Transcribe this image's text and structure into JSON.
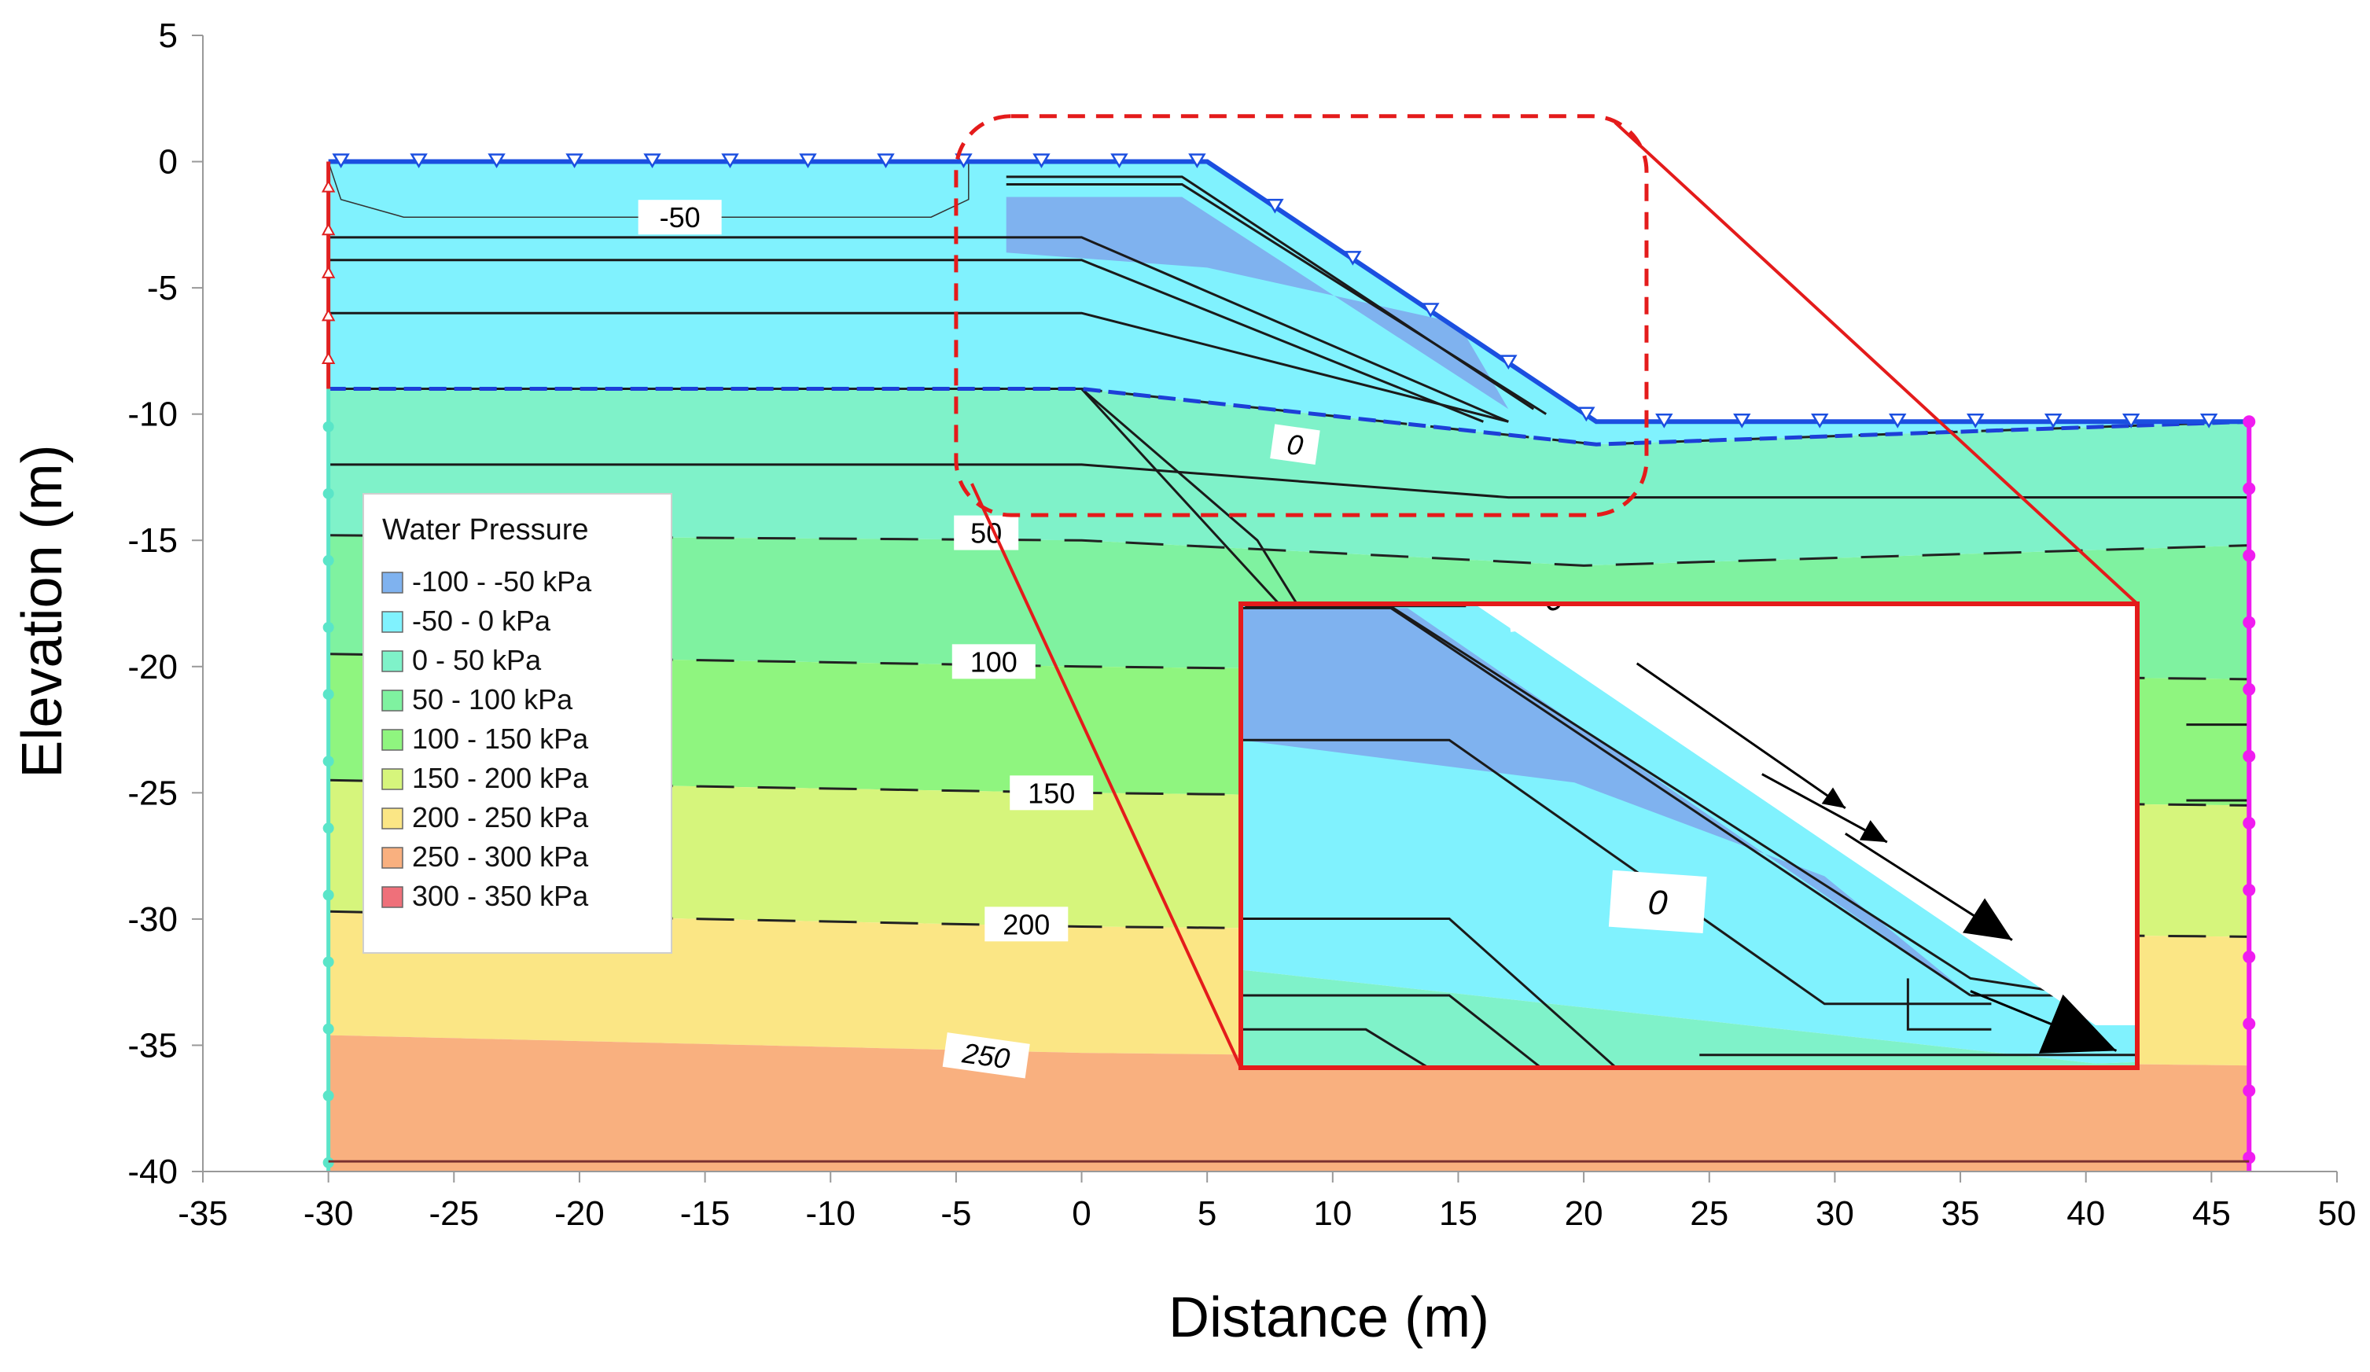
{
  "chart_data": {
    "type": "contour",
    "xlabel": "Distance (m)",
    "ylabel": "Elevation (m)",
    "xlim": [
      -35,
      50
    ],
    "ylim": [
      -40,
      5
    ],
    "xticks": [
      -35,
      -30,
      -25,
      -20,
      -15,
      -10,
      -5,
      0,
      5,
      10,
      15,
      20,
      25,
      30,
      35,
      40,
      45,
      50
    ],
    "yticks": [
      5,
      0,
      -5,
      -10,
      -15,
      -20,
      -25,
      -30,
      -35,
      -40
    ],
    "grid": false,
    "legend": {
      "title": "Water Pressure",
      "placement": "left-middle",
      "entries": [
        {
          "label": "-100 - -50 kPa",
          "color": "#7fb2ef"
        },
        {
          "label": "-50 - 0 kPa",
          "color": "#80f2fe"
        },
        {
          "label": "0 - 50 kPa",
          "color": "#7ff2c9"
        },
        {
          "label": "50 - 100 kPa",
          "color": "#7ff2a0"
        },
        {
          "label": "100 - 150 kPa",
          "color": "#8ff57f"
        },
        {
          "label": "150 - 200 kPa",
          "color": "#d6f57c"
        },
        {
          "label": "200 - 250 kPa",
          "color": "#fbe685"
        },
        {
          "label": "250 - 300 kPa",
          "color": "#f9b07f"
        },
        {
          "label": "300 - 350 kPa",
          "color": "#ef707a"
        }
      ]
    },
    "geometry": {
      "crest_elevation": 0,
      "toe_elevation": -10.3,
      "crest_edge_x": 5,
      "toe_x": 20.5,
      "left_x": -30,
      "right_x": 46.5,
      "bottom_elevation": -40
    },
    "zones": [
      {
        "range": "-50 - 0 kPa",
        "top": [
          [
            -30,
            0
          ],
          [
            5,
            0
          ],
          [
            20.5,
            -10.3
          ],
          [
            46.5,
            -10.3
          ]
        ],
        "bottom": [
          [
            -30,
            -9
          ],
          [
            0,
            -9
          ],
          [
            20.5,
            -11.2
          ],
          [
            46.5,
            -10.3
          ]
        ]
      },
      {
        "range": "0 - 50 kPa",
        "top": [
          [
            -30,
            -9
          ],
          [
            0,
            -9
          ],
          [
            20.5,
            -11.2
          ],
          [
            46.5,
            -10.3
          ]
        ],
        "bottom": [
          [
            -30,
            -14.8
          ],
          [
            0,
            -15
          ],
          [
            20,
            -16
          ],
          [
            46.5,
            -15.2
          ]
        ]
      },
      {
        "range": "50 - 100 kPa",
        "top": [
          [
            -30,
            -14.8
          ],
          [
            0,
            -15
          ],
          [
            20,
            -16
          ],
          [
            46.5,
            -15.2
          ]
        ],
        "bottom": [
          [
            -30,
            -19.5
          ],
          [
            0,
            -20
          ],
          [
            46.5,
            -20.5
          ]
        ]
      },
      {
        "range": "100 - 150 kPa",
        "top": [
          [
            -30,
            -19.5
          ],
          [
            0,
            -20
          ],
          [
            46.5,
            -20.5
          ]
        ],
        "bottom": [
          [
            -30,
            -24.5
          ],
          [
            0,
            -25
          ],
          [
            46.5,
            -25.5
          ]
        ]
      },
      {
        "range": "150 - 200 kPa",
        "top": [
          [
            -30,
            -24.5
          ],
          [
            0,
            -25
          ],
          [
            46.5,
            -25.5
          ]
        ],
        "bottom": [
          [
            -30,
            -29.7
          ],
          [
            0,
            -30.3
          ],
          [
            46.5,
            -30.7
          ]
        ]
      },
      {
        "range": "200 - 250 kPa",
        "top": [
          [
            -30,
            -29.7
          ],
          [
            0,
            -30.3
          ],
          [
            46.5,
            -30.7
          ]
        ],
        "bottom": [
          [
            -30,
            -34.6
          ],
          [
            0,
            -35.3
          ],
          [
            46.5,
            -35.8
          ]
        ]
      },
      {
        "range": "250 - 300 kPa",
        "top": [
          [
            -30,
            -34.6
          ],
          [
            0,
            -35.3
          ],
          [
            46.5,
            -35.8
          ]
        ],
        "bottom": [
          [
            -30,
            -40
          ],
          [
            46.5,
            -40
          ]
        ]
      }
    ],
    "contour_labels": [
      {
        "text": "-50",
        "x": -16,
        "y": -2.2
      },
      {
        "text": "0",
        "x": 8.5,
        "y": -11.2
      },
      {
        "text": "50",
        "x": -3.8,
        "y": -14.7
      },
      {
        "text": "100",
        "x": -3.5,
        "y": -19.8
      },
      {
        "text": "150",
        "x": -1.2,
        "y": -25.0
      },
      {
        "text": "200",
        "x": -2.2,
        "y": -30.2
      },
      {
        "text": "250",
        "x": -3.8,
        "y": -35.4
      }
    ],
    "inset": {
      "zoom_region": {
        "x": [
          -5,
          22.5
        ],
        "y": [
          -14.0,
          1.8
        ]
      },
      "labels": [
        {
          "text": "0",
          "position": "top"
        },
        {
          "text": "0",
          "position": "middle"
        }
      ]
    }
  }
}
